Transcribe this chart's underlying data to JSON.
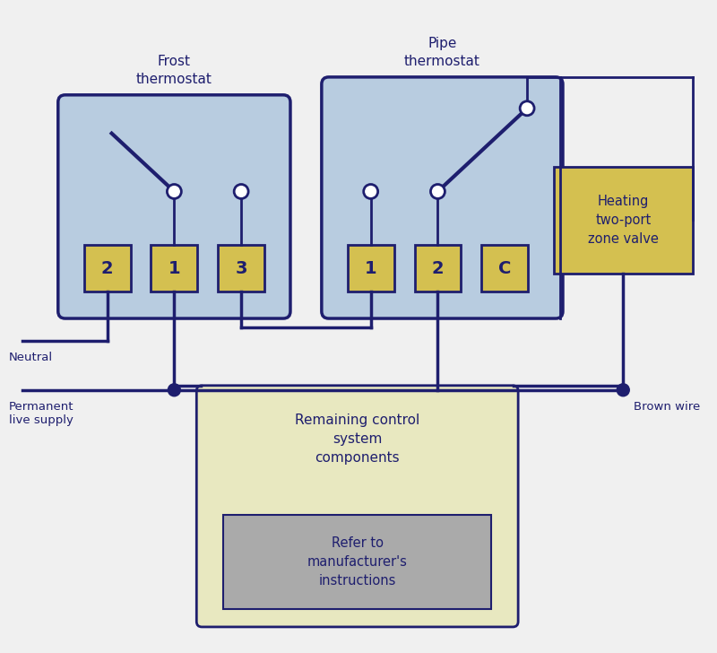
{
  "bg_color": "#f0f0f0",
  "line_color": "#1e1e6e",
  "box_yellow": "#d4c050",
  "box_blue_bg": "#b8cce0",
  "box_blue_edge": "#1e1e6e",
  "box_cream": "#e8e8c0",
  "box_gray": "#aaaaaa",
  "frost_label": "Frost\nthermostat",
  "pipe_label": "Pipe\nthermostat",
  "heating_label": "Heating\ntwo-port\nzone valve",
  "remaining_label": "Remaining control\nsystem\ncomponents",
  "refer_label": "Refer to\nmanufacturer's\ninstructions",
  "neutral_label": "Neutral",
  "perm_label": "Permanent\nlive supply",
  "brown_label": "Brown wire",
  "frost_terminals": [
    "2",
    "1",
    "3"
  ],
  "pipe_terminals": [
    "1",
    "2",
    "C"
  ],
  "figw": 8.0,
  "figh": 7.28
}
